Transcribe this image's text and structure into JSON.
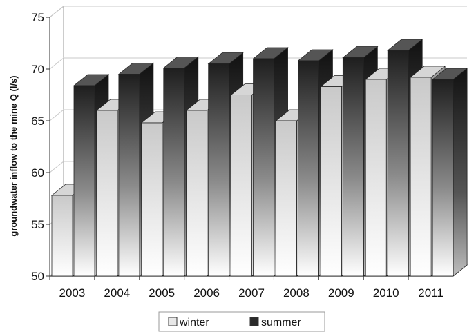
{
  "chart_data": {
    "type": "bar",
    "title": "",
    "xlabel": "",
    "ylabel": "groundwater inflow to the mine Q (l/s)",
    "ylim": [
      50,
      75
    ],
    "yticks": [
      50,
      55,
      60,
      65,
      70,
      75
    ],
    "categories": [
      "2003",
      "2004",
      "2005",
      "2006",
      "2007",
      "2008",
      "2009",
      "2010",
      "2011"
    ],
    "series": [
      {
        "name": "winter",
        "values": [
          57.8,
          66.0,
          64.8,
          66.0,
          67.5,
          65.0,
          68.3,
          69.0,
          69.2
        ],
        "color": "#e8e8e8"
      },
      {
        "name": "summer",
        "values": [
          68.4,
          69.5,
          70.1,
          70.5,
          71.0,
          70.8,
          71.1,
          71.8,
          69.0
        ],
        "color": "#2a2a2a"
      }
    ],
    "grid": true,
    "legend_position": "bottom-center",
    "style": "3d-gradient"
  }
}
